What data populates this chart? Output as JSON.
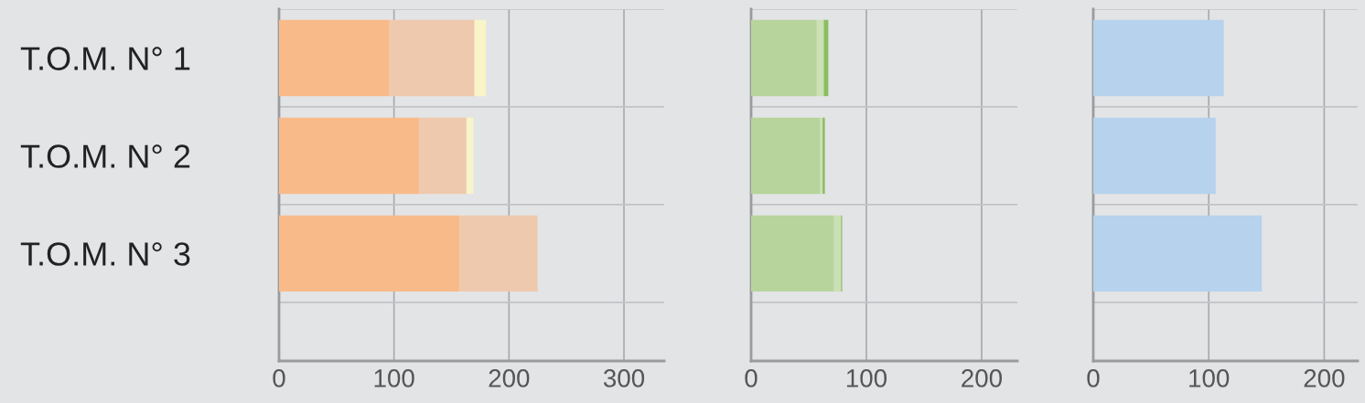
{
  "chart_data": [
    {
      "type": "bar",
      "orientation": "horizontal",
      "stacked": true,
      "categories": [
        "T.O.M. N° 1",
        "T.O.M. N° 2",
        "T.O.M. N° 3"
      ],
      "series": [
        {
          "color": "#f9ba8a",
          "values": [
            96,
            122,
            157
          ]
        },
        {
          "color": "#efc9ad",
          "values": [
            74,
            41,
            68
          ]
        },
        {
          "color": "#f8f5c8",
          "values": [
            10,
            6,
            null
          ]
        }
      ],
      "xlim": [
        0,
        335
      ],
      "xticks": [
        0,
        100,
        200,
        300
      ],
      "grid": true
    },
    {
      "type": "bar",
      "orientation": "horizontal",
      "stacked": true,
      "categories": [
        null,
        null,
        null
      ],
      "series": [
        {
          "color": "#b7d49c",
          "values": [
            57,
            60,
            72
          ]
        },
        {
          "color": "#cbe1b5",
          "values": [
            6,
            2,
            6
          ]
        },
        {
          "color": "#8cbd62",
          "values": [
            4,
            2,
            1
          ]
        }
      ],
      "xlim": [
        0,
        231
      ],
      "xticks": [
        0,
        100,
        200
      ],
      "grid": true,
      "tick_labels": "x"
    },
    {
      "type": "bar",
      "orientation": "horizontal",
      "stacked": true,
      "categories": [
        null,
        null,
        null
      ],
      "series": [
        {
          "color": "#b6d2ec",
          "values": [
            113,
            106,
            146
          ]
        }
      ],
      "xlim": [
        0,
        229
      ],
      "xticks": [
        0,
        100,
        200
      ],
      "grid": true,
      "tick_labels": "x"
    }
  ]
}
